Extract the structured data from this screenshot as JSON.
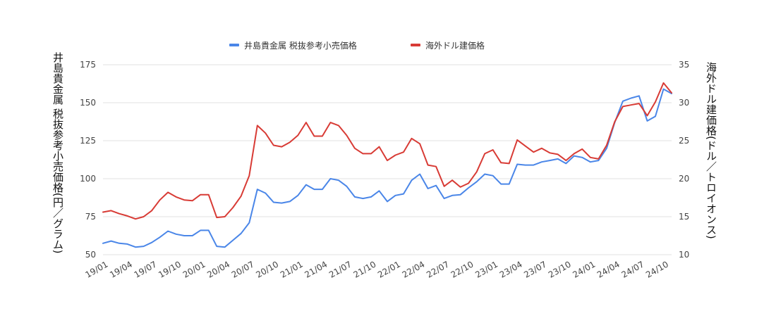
{
  "chart_data": {
    "type": "line",
    "legend_position": "top",
    "grid": true,
    "left_axis": {
      "label": "井島貴金属 税抜参考小売価格(円／グラム)",
      "ticks": [
        "175",
        "150",
        "125",
        "100",
        "75",
        "50"
      ],
      "range": [
        50,
        175
      ]
    },
    "right_axis": {
      "label": "海外ドル建価格(ドル／トロイオンス)",
      "ticks": [
        "35",
        "30",
        "25",
        "20",
        "15",
        "10"
      ],
      "range": [
        10,
        35
      ]
    },
    "x_ticks": [
      "19/01",
      "19/04",
      "19/07",
      "19/10",
      "20/01",
      "20/04",
      "20/07",
      "20/10",
      "21/01",
      "21/04",
      "21/07",
      "21/10",
      "22/01",
      "22/04",
      "22/07",
      "22/10",
      "23/01",
      "23/04",
      "23/07",
      "23/10",
      "24/01",
      "24/04",
      "24/07",
      "24/10"
    ],
    "colors": {
      "domestic": "#4a86e8",
      "overseas": "#d83b35",
      "grid": "#e0e0e0"
    },
    "series": [
      {
        "name": "井島貴金属 税抜参考小売価格",
        "axis": "left",
        "color": "#4a86e8",
        "values": [
          57.5,
          59,
          57.5,
          57,
          55,
          55.5,
          58,
          61.5,
          65.5,
          63.5,
          62.5,
          62.5,
          66,
          66,
          55.5,
          55,
          59.5,
          64,
          71,
          93,
          90.5,
          84.5,
          84,
          85,
          89,
          96,
          93,
          93,
          100,
          99,
          95,
          88,
          87,
          88,
          92,
          85,
          89,
          90,
          99,
          103,
          93.5,
          95.5,
          87,
          89,
          89.5,
          94,
          98,
          103,
          102,
          96.5,
          96.5,
          109.5,
          109,
          109,
          111,
          112,
          113,
          110,
          115,
          114,
          111,
          112,
          120,
          137,
          151,
          153,
          154.5,
          138,
          141,
          159,
          156
        ]
      },
      {
        "name": "海外ドル建価格",
        "axis": "right",
        "color": "#d83b35",
        "values": [
          15.6,
          15.8,
          15.4,
          15.1,
          14.7,
          15,
          15.8,
          17.2,
          18.2,
          17.6,
          17.2,
          17.1,
          17.9,
          17.9,
          14.9,
          15,
          16.2,
          17.7,
          20.4,
          27,
          26,
          24.4,
          24.2,
          24.8,
          25.7,
          27.4,
          25.6,
          25.6,
          27.4,
          27,
          25.7,
          24,
          23.3,
          23.3,
          24.2,
          22.4,
          23.1,
          23.5,
          25.3,
          24.6,
          21.8,
          21.6,
          19,
          19.8,
          18.9,
          19.4,
          20.9,
          23.3,
          23.8,
          22.1,
          22,
          25.1,
          24.3,
          23.5,
          24,
          23.4,
          23.2,
          22.4,
          23.3,
          23.9,
          22.8,
          22.6,
          24.4,
          27.5,
          29.5,
          29.7,
          29.9,
          28.3,
          30.1,
          32.6,
          31.3
        ]
      }
    ]
  }
}
